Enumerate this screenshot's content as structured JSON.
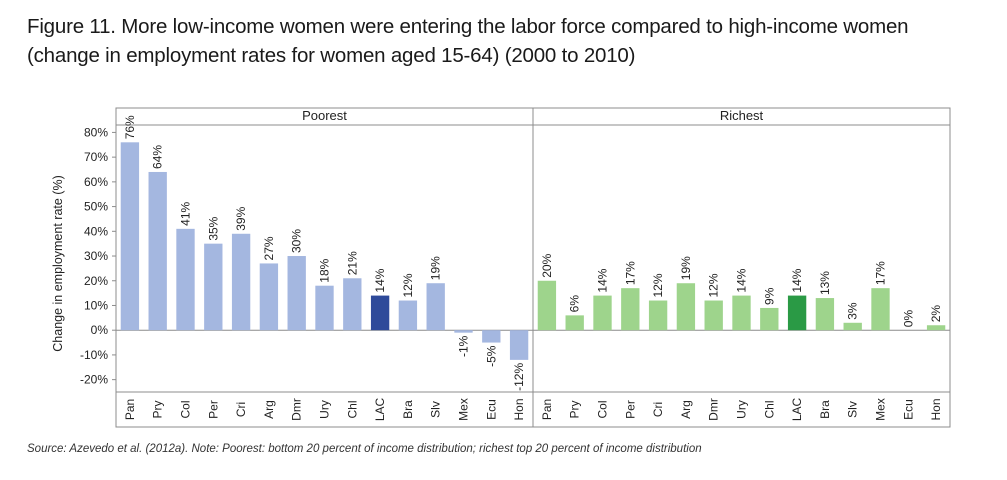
{
  "title_lines": [
    "Figure 11. More low-income women were entering the labor force compared to high-income women",
    "(change in employment rates for women aged 15-64) (2000 to 2010)"
  ],
  "source_note": "Source: Azevedo et al. (2012a). Note: Poorest: bottom 20 percent of income distribution; richest top 20 percent of income distribution",
  "chart_data": {
    "type": "bar",
    "ylabel": "Change in employment rate (%)",
    "ylim": [
      -25,
      83
    ],
    "yticks": [
      -20,
      -10,
      0,
      10,
      20,
      30,
      40,
      50,
      60,
      70,
      80
    ],
    "ytick_labels": [
      "-20%",
      "-10%",
      "0%",
      "10%",
      "20%",
      "30%",
      "40%",
      "50%",
      "60%",
      "70%",
      "80%"
    ],
    "panels": [
      {
        "name": "Poorest",
        "categories": [
          "Pan",
          "Pry",
          "Col",
          "Per",
          "Cri",
          "Arg",
          "Dmr",
          "Ury",
          "Chl",
          "LAC",
          "Bra",
          "Slv",
          "Mex",
          "Ecu",
          "Hon"
        ],
        "values": [
          76,
          64,
          41,
          35,
          39,
          27,
          30,
          18,
          21,
          14,
          12,
          19,
          -1,
          -5,
          -12
        ],
        "labels": [
          "76%",
          "64%",
          "41%",
          "35%",
          "39%",
          "27%",
          "30%",
          "18%",
          "21%",
          "14%",
          "12%",
          "19%",
          "-1%",
          "-5%",
          "-12%"
        ],
        "color": "#a4b7e0",
        "highlight_category": "LAC",
        "highlight_color": "#2e4a9a"
      },
      {
        "name": "Richest",
        "categories": [
          "Pan",
          "Pry",
          "Col",
          "Per",
          "Cri",
          "Arg",
          "Dmr",
          "Ury",
          "Chl",
          "LAC",
          "Bra",
          "Slv",
          "Mex",
          "Ecu",
          "Hon"
        ],
        "values": [
          20,
          6,
          14,
          17,
          12,
          19,
          12,
          14,
          9,
          14,
          13,
          3,
          17,
          0,
          2
        ],
        "labels": [
          "20%",
          "6%",
          "14%",
          "17%",
          "12%",
          "19%",
          "12%",
          "14%",
          "9%",
          "14%",
          "13%",
          "3%",
          "17%",
          "0%",
          "2%"
        ],
        "color": "#9ed48c",
        "highlight_category": "LAC",
        "highlight_color": "#2a9a45"
      }
    ]
  }
}
